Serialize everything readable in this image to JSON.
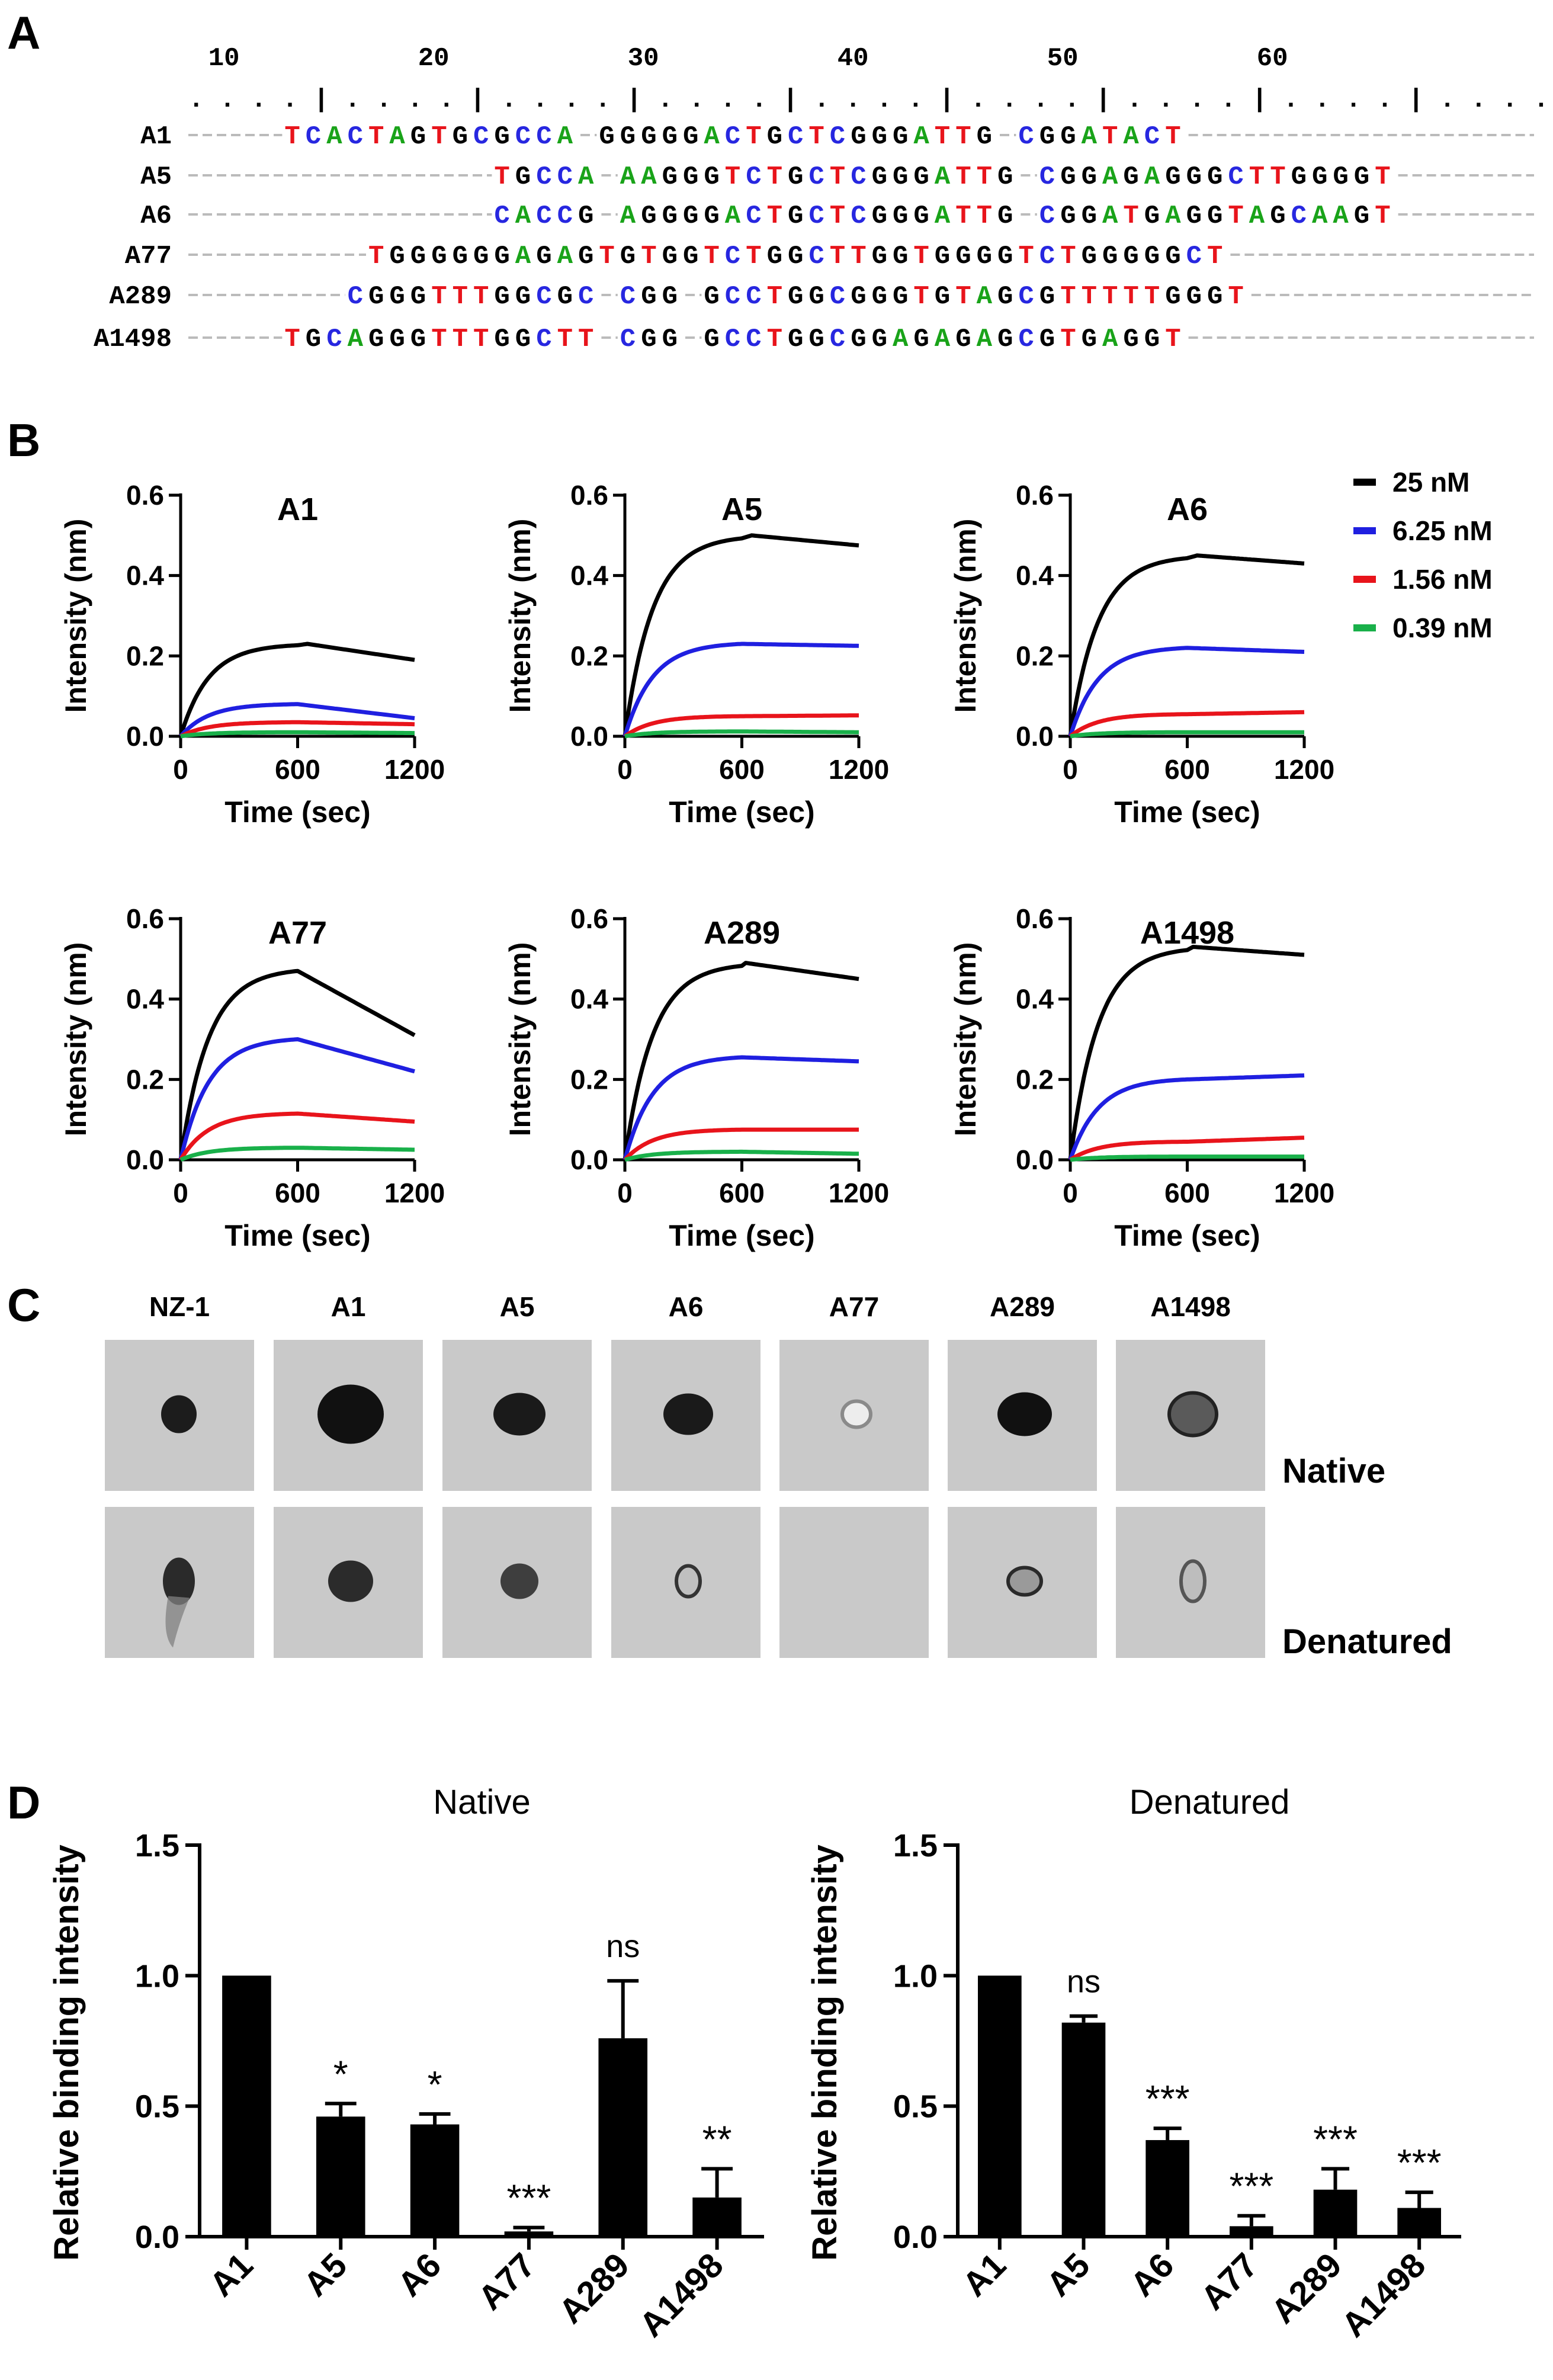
{
  "panels": {
    "a": "A",
    "b": "B",
    "c": "C",
    "d": "D"
  },
  "colors": {
    "T": "#e8141b",
    "C": "#2727e0",
    "A": "#19a319",
    "G": "#000000",
    "dash": "#bbbbbb",
    "blot_bg": "#c9c9c9"
  },
  "alignment": {
    "ruler_numbers": [
      "10",
      "20",
      "30",
      "40",
      "50",
      "60"
    ],
    "ruler_dots": ". . . . | . . . . | . . . . | . . . . | . . . . | . . . . | . . . . | . . . . | . . . . | . . . . | . . . . | . . . . | . . . .",
    "rows": [
      {
        "name": "A1",
        "segments": [
          {
            "col": 13,
            "seq": "TCACTAGTGCGCCA"
          },
          {
            "col": 28,
            "seq": "GGGGGACTGCTCGGGATTG"
          },
          {
            "col": 48,
            "seq": "CGGATACT"
          }
        ]
      },
      {
        "name": "A5",
        "segments": [
          {
            "col": 23,
            "seq": "TGCCA"
          },
          {
            "col": 29,
            "seq": "AAGGGTCTGCTCGGGATTG"
          },
          {
            "col": 49,
            "seq": "CGGAGAGGGCTTGGGGT"
          }
        ]
      },
      {
        "name": "A6",
        "segments": [
          {
            "col": 23,
            "seq": "CACCG"
          },
          {
            "col": 29,
            "seq": "AGGGGACTGCTCGGGATTG"
          },
          {
            "col": 49,
            "seq": "CGGATGAGGTAGCAAGT"
          }
        ]
      },
      {
        "name": "A77",
        "segments": [
          {
            "col": 17,
            "seq": "TGGGGGGAGAGTGTGGTCTGGCTTGGTGGGGTCTGGGGGCT"
          }
        ]
      },
      {
        "name": "A289",
        "segments": [
          {
            "col": 16,
            "seq": "CGGGTTTGGCGC"
          },
          {
            "col": 29,
            "seq": "CGG"
          },
          {
            "col": 33,
            "seq": "GCCTGGCGGGTGTAGCGTTTTTGGGT"
          }
        ]
      },
      {
        "name": "A1498",
        "segments": [
          {
            "col": 13,
            "seq": "TGCAGGGTTTGGCTT"
          },
          {
            "col": 29,
            "seq": "CGG"
          },
          {
            "col": 33,
            "seq": "GCCTGGCGGAGAGAGCGTGAGGT"
          }
        ]
      }
    ]
  },
  "bli": {
    "ylabel": "Intensity (nm)",
    "xlabel": "Time (sec)",
    "xticks": [
      "0",
      "600",
      "1200"
    ],
    "yticks": [
      "0.0",
      "0.2",
      "0.4",
      "0.6"
    ],
    "legend": [
      {
        "label": "25 nM",
        "color": "#000000"
      },
      {
        "label": "6.25 nM",
        "color": "#1f1fe0"
      },
      {
        "label": "1.56 nM",
        "color": "#e8141b"
      },
      {
        "label": "0.39 nM",
        "color": "#19b04a"
      }
    ]
  },
  "blot": {
    "lanes": [
      "NZ-1",
      "A1",
      "A5",
      "A6",
      "A77",
      "A289",
      "A1498"
    ],
    "rows": [
      "Native",
      "Denatured"
    ]
  },
  "chart_data": [
    {
      "type": "line",
      "title": "A1",
      "xlabel": "Time (sec)",
      "ylabel": "Intensity (nm)",
      "xlim": [
        0,
        1200
      ],
      "ylim": [
        0,
        0.6
      ],
      "series": [
        {
          "name": "25 nM",
          "peak_time": 650,
          "peak": 0.23,
          "end": 0.19
        },
        {
          "name": "6.25 nM",
          "peak_time": 600,
          "peak": 0.08,
          "end": 0.045
        },
        {
          "name": "1.56 nM",
          "peak_time": 600,
          "peak": 0.035,
          "end": 0.03
        },
        {
          "name": "0.39 nM",
          "peak_time": 600,
          "peak": 0.01,
          "end": 0.008
        }
      ]
    },
    {
      "type": "line",
      "title": "A5",
      "xlabel": "Time (sec)",
      "ylabel": "Intensity (nm)",
      "xlim": [
        0,
        1200
      ],
      "ylim": [
        0,
        0.6
      ],
      "series": [
        {
          "name": "25 nM",
          "peak_time": 650,
          "peak": 0.5,
          "end": 0.475
        },
        {
          "name": "6.25 nM",
          "peak_time": 600,
          "peak": 0.23,
          "end": 0.225
        },
        {
          "name": "1.56 nM",
          "peak_time": 600,
          "peak": 0.05,
          "end": 0.052
        },
        {
          "name": "0.39 nM",
          "peak_time": 600,
          "peak": 0.012,
          "end": 0.01
        }
      ]
    },
    {
      "type": "line",
      "title": "A6",
      "xlabel": "Time (sec)",
      "ylabel": "Intensity (nm)",
      "xlim": [
        0,
        1200
      ],
      "ylim": [
        0,
        0.6
      ],
      "series": [
        {
          "name": "25 nM",
          "peak_time": 650,
          "peak": 0.45,
          "end": 0.43
        },
        {
          "name": "6.25 nM",
          "peak_time": 600,
          "peak": 0.22,
          "end": 0.21
        },
        {
          "name": "1.56 nM",
          "peak_time": 600,
          "peak": 0.055,
          "end": 0.06
        },
        {
          "name": "0.39 nM",
          "peak_time": 600,
          "peak": 0.01,
          "end": 0.01
        }
      ]
    },
    {
      "type": "line",
      "title": "A77",
      "xlabel": "Time (sec)",
      "ylabel": "Intensity (nm)",
      "xlim": [
        0,
        1200
      ],
      "ylim": [
        0,
        0.6
      ],
      "series": [
        {
          "name": "25 nM",
          "peak_time": 600,
          "peak": 0.47,
          "end": 0.31
        },
        {
          "name": "6.25 nM",
          "peak_time": 600,
          "peak": 0.3,
          "end": 0.22
        },
        {
          "name": "1.56 nM",
          "peak_time": 600,
          "peak": 0.115,
          "end": 0.095
        },
        {
          "name": "0.39 nM",
          "peak_time": 600,
          "peak": 0.03,
          "end": 0.025
        }
      ]
    },
    {
      "type": "line",
      "title": "A289",
      "xlabel": "Time (sec)",
      "ylabel": "Intensity (nm)",
      "xlim": [
        0,
        1200
      ],
      "ylim": [
        0,
        0.6
      ],
      "series": [
        {
          "name": "25 nM",
          "peak_time": 620,
          "peak": 0.49,
          "end": 0.45
        },
        {
          "name": "6.25 nM",
          "peak_time": 600,
          "peak": 0.255,
          "end": 0.245
        },
        {
          "name": "1.56 nM",
          "peak_time": 600,
          "peak": 0.075,
          "end": 0.075
        },
        {
          "name": "0.39 nM",
          "peak_time": 600,
          "peak": 0.02,
          "end": 0.015
        }
      ]
    },
    {
      "type": "line",
      "title": "A1498",
      "xlabel": "Time (sec)",
      "ylabel": "Intensity (nm)",
      "xlim": [
        0,
        1200
      ],
      "ylim": [
        0,
        0.6
      ],
      "series": [
        {
          "name": "25 nM",
          "peak_time": 630,
          "peak": 0.53,
          "end": 0.51
        },
        {
          "name": "6.25 nM",
          "peak_time": 600,
          "peak": 0.2,
          "end": 0.21
        },
        {
          "name": "1.56 nM",
          "peak_time": 600,
          "peak": 0.045,
          "end": 0.055
        },
        {
          "name": "0.39 nM",
          "peak_time": 600,
          "peak": 0.008,
          "end": 0.008
        }
      ]
    },
    {
      "type": "bar",
      "title": "Native",
      "ylabel": "Relative binding intensity",
      "ylim": [
        0,
        1.5
      ],
      "yticks": [
        "0.0",
        "0.5",
        "1.0",
        "1.5"
      ],
      "categories": [
        "A1",
        "A5",
        "A6",
        "A77",
        "A289",
        "A1498"
      ],
      "values": [
        1.0,
        0.46,
        0.43,
        0.02,
        0.76,
        0.15
      ],
      "errors": [
        0,
        0.05,
        0.04,
        0.015,
        0.22,
        0.11
      ],
      "significance": [
        "",
        "*",
        "*",
        "***",
        "ns",
        "**"
      ]
    },
    {
      "type": "bar",
      "title": "Denatured",
      "ylabel": "Relative binding intensity",
      "ylim": [
        0,
        1.5
      ],
      "yticks": [
        "0.0",
        "0.5",
        "1.0",
        "1.5"
      ],
      "categories": [
        "A1",
        "A5",
        "A6",
        "A77",
        "A289",
        "A1498"
      ],
      "values": [
        1.0,
        0.82,
        0.37,
        0.04,
        0.18,
        0.11
      ],
      "errors": [
        0,
        0.025,
        0.045,
        0.04,
        0.08,
        0.06
      ],
      "significance": [
        "",
        "ns",
        "***",
        "***",
        "***",
        "***"
      ]
    }
  ]
}
